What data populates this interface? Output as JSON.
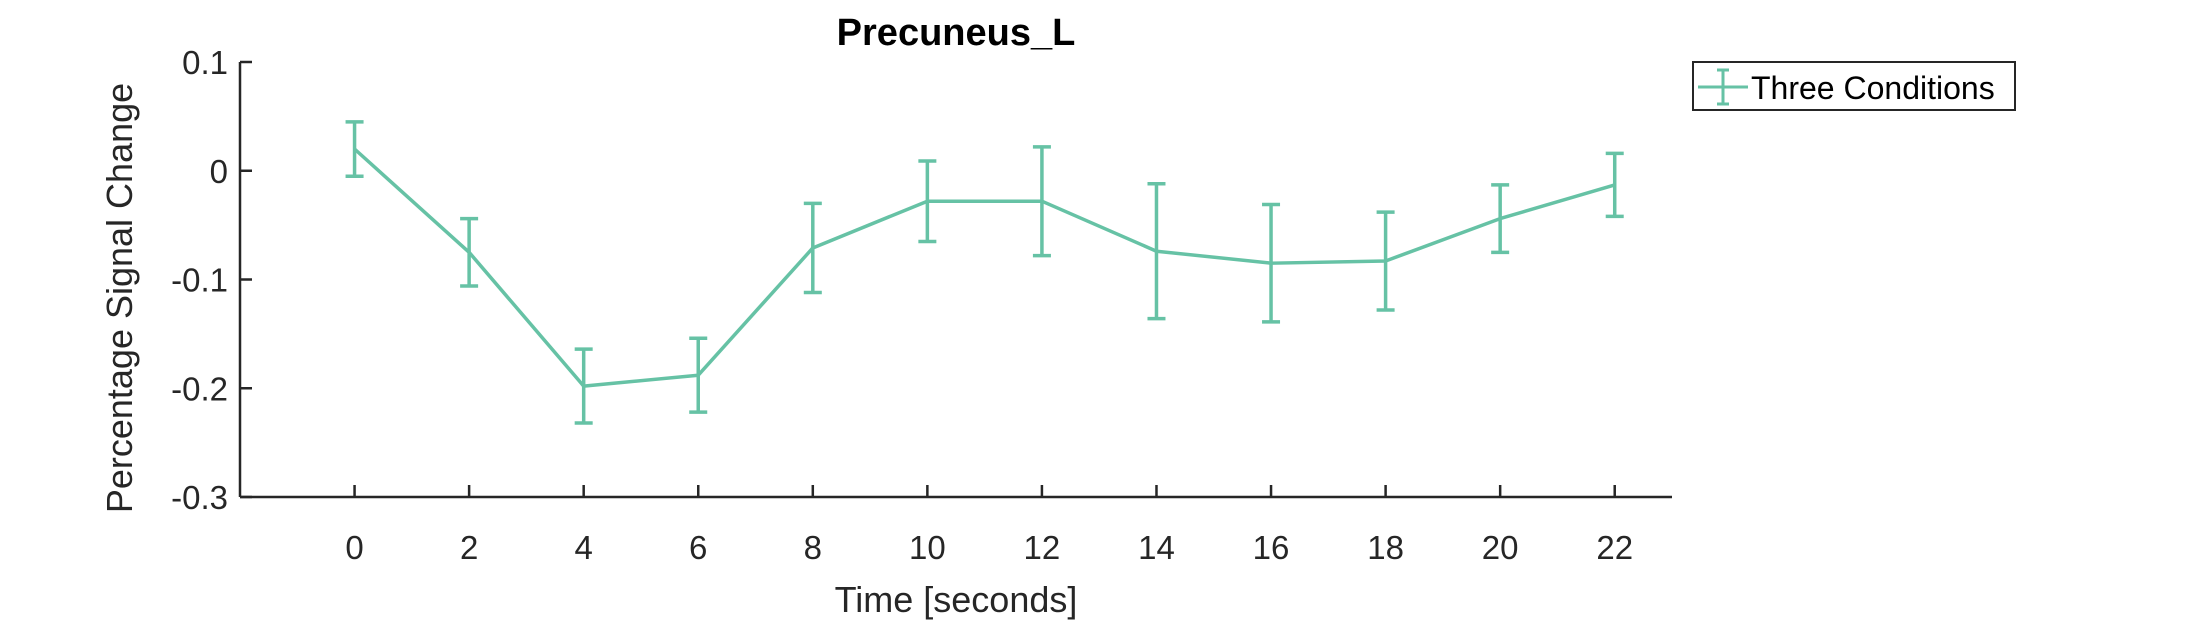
{
  "chart_data": {
    "type": "line",
    "title": "Precuneus_L",
    "xlabel": "Time [seconds]",
    "ylabel": "Percentage Signal Change",
    "x": [
      0,
      2,
      4,
      6,
      8,
      10,
      12,
      14,
      16,
      18,
      20,
      22
    ],
    "xlim": [
      -2,
      23
    ],
    "ylim": [
      -0.3,
      0.1
    ],
    "xticks": [
      "0",
      "2",
      "4",
      "6",
      "8",
      "10",
      "12",
      "14",
      "16",
      "18",
      "20",
      "22"
    ],
    "yticks": [
      "0.1",
      "0",
      "-0.1",
      "-0.2",
      "-0.3"
    ],
    "ytick_values": [
      0.1,
      0,
      -0.1,
      -0.2,
      -0.3
    ],
    "grid": false,
    "legend_position": "outside-top-right",
    "series": [
      {
        "name": "Three Conditions",
        "color": "#66c2a5",
        "values": [
          0.02,
          -0.075,
          -0.198,
          -0.188,
          -0.071,
          -0.028,
          -0.028,
          -0.074,
          -0.085,
          -0.083,
          -0.044,
          -0.013
        ],
        "error": [
          0.025,
          0.031,
          0.034,
          0.034,
          0.041,
          0.037,
          0.05,
          0.062,
          0.054,
          0.045,
          0.031,
          0.029
        ]
      }
    ]
  }
}
